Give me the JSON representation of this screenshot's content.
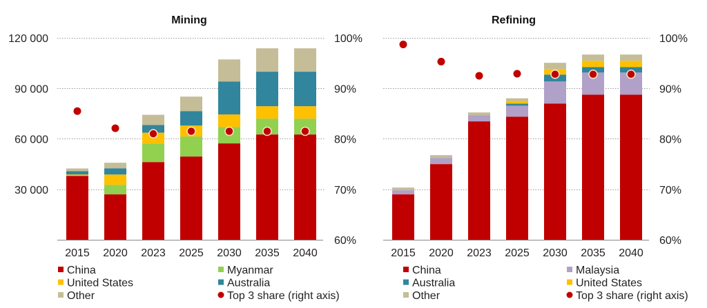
{
  "chart_data": [
    {
      "type": "bar",
      "stacked": true,
      "title": "Mining",
      "categories": [
        "2015",
        "2020",
        "2023",
        "2025",
        "2030",
        "2035",
        "2040"
      ],
      "left_axis": {
        "ylim": [
          0,
          120000
        ],
        "ticks": [
          "120 000",
          "90 000",
          "60 000",
          "30 000"
        ],
        "tick_values": [
          120000,
          90000,
          60000,
          30000
        ]
      },
      "right_axis": {
        "ylim": [
          0.6,
          1.0
        ],
        "ticks": [
          "100%",
          "90%",
          "80%",
          "70%",
          "60%"
        ],
        "tick_values": [
          1.0,
          0.9,
          0.8,
          0.7,
          0.6
        ]
      },
      "grid": true,
      "series": [
        {
          "name": "China",
          "color": "#C00000",
          "values": [
            38000,
            27000,
            46200,
            49500,
            57300,
            62600,
            62600
          ]
        },
        {
          "name": "Myanmar",
          "color": "#92D050",
          "values": [
            0,
            5700,
            11000,
            11900,
            9800,
            9400,
            9400
          ]
        },
        {
          "name": "United States",
          "color": "#FFC000",
          "values": [
            800,
            6100,
            6500,
            6500,
            7400,
            7400,
            7400
          ]
        },
        {
          "name": "Australia",
          "color": "#31859C",
          "values": [
            2000,
            3700,
            4500,
            8600,
            19600,
            20500,
            20500
          ]
        },
        {
          "name": "Other",
          "color": "#C4BD97",
          "values": [
            1600,
            3300,
            6100,
            8600,
            13100,
            13900,
            13900
          ]
        }
      ],
      "share_series": {
        "name": "Top 3 share (right axis)",
        "color": "#C00000",
        "values": [
          0.855,
          0.821,
          0.81,
          0.815,
          0.815,
          0.815,
          0.815
        ]
      },
      "legend": {
        "placement": "bottom",
        "items": [
          {
            "label": "China",
            "color": "#C00000",
            "marker": "square"
          },
          {
            "label": "Myanmar",
            "color": "#92D050",
            "marker": "square"
          },
          {
            "label": "United States",
            "color": "#FFC000",
            "marker": "square"
          },
          {
            "label": "Australia",
            "color": "#31859C",
            "marker": "square"
          },
          {
            "label": "Other",
            "color": "#C4BD97",
            "marker": "square"
          },
          {
            "label": "Top 3 share (right axis)",
            "color": "#C00000",
            "marker": "circle"
          }
        ]
      }
    },
    {
      "type": "bar",
      "stacked": true,
      "title": "Refining",
      "categories": [
        "2015",
        "2020",
        "2023",
        "2025",
        "2030",
        "2035",
        "2040"
      ],
      "left_axis": {
        "ylim": [
          0,
          120000
        ],
        "ticks": [],
        "tick_values": []
      },
      "right_axis": {
        "ylim": [
          0.6,
          1.0
        ],
        "ticks": [
          "100%",
          "90%",
          "80%",
          "70%",
          "60%"
        ],
        "tick_values": [
          1.0,
          0.9,
          0.8,
          0.7,
          0.6
        ]
      },
      "grid": true,
      "series": [
        {
          "name": "China",
          "color": "#C00000",
          "values": [
            27000,
            45000,
            70400,
            73200,
            81000,
            86300,
            86300
          ]
        },
        {
          "name": "Malaysia",
          "color": "#B1A0C7",
          "values": [
            2450,
            3700,
            3700,
            6500,
            13100,
            13100,
            13100
          ]
        },
        {
          "name": "Australia",
          "color": "#31859C",
          "values": [
            0,
            0,
            0,
            1200,
            4100,
            3300,
            3300
          ]
        },
        {
          "name": "United States",
          "color": "#FFC000",
          "values": [
            0,
            0,
            0,
            1600,
            3300,
            3700,
            3700
          ]
        },
        {
          "name": "Other",
          "color": "#C4BD97",
          "values": [
            1600,
            1600,
            1600,
            1600,
            3700,
            3700,
            3700
          ]
        }
      ],
      "share_series": {
        "name": "Top 3 share (right axis)",
        "color": "#C00000",
        "values": [
          0.987,
          0.953,
          0.925,
          0.929,
          0.928,
          0.928,
          0.928
        ]
      },
      "legend": {
        "placement": "bottom",
        "items": [
          {
            "label": "China",
            "color": "#C00000",
            "marker": "square"
          },
          {
            "label": "Malaysia",
            "color": "#B1A0C7",
            "marker": "square"
          },
          {
            "label": "Australia",
            "color": "#31859C",
            "marker": "square"
          },
          {
            "label": "United States",
            "color": "#FFC000",
            "marker": "square"
          },
          {
            "label": "Other",
            "color": "#C4BD97",
            "marker": "square"
          },
          {
            "label": "Top 3 share (right axis)",
            "color": "#C00000",
            "marker": "circle"
          }
        ]
      }
    }
  ]
}
